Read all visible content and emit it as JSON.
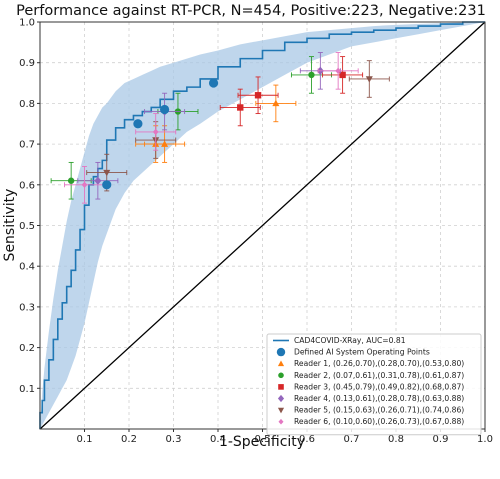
{
  "chart_data": {
    "type": "scatter",
    "title": "Performance against RT-PCR, N=454, Positive:223, Negative:231",
    "xlabel": "1-Specificity",
    "ylabel": "Sensitivity",
    "xlim": [
      0.0,
      1.0
    ],
    "ylim": [
      0.0,
      1.0
    ],
    "xticks": [
      "0.1",
      "0.2",
      "0.3",
      "0.4",
      "0.5",
      "0.6",
      "0.7",
      "0.8",
      "0.9",
      "1.0"
    ],
    "yticks": [
      "0.1",
      "0.2",
      "0.3",
      "0.4",
      "0.5",
      "0.6",
      "0.7",
      "0.8",
      "0.9",
      "1.0"
    ],
    "grid": true,
    "legend_position": "lower-right",
    "diagonal": [
      [
        0.0,
        0.0
      ],
      [
        1.0,
        1.0
      ]
    ],
    "roc": {
      "name": "CAD4COVID-XRay, AUC=0.81",
      "color": "#1f77b4",
      "band_color": "#a9c8e6",
      "x": [
        0.0,
        0.005,
        0.01,
        0.02,
        0.03,
        0.04,
        0.05,
        0.06,
        0.07,
        0.08,
        0.09,
        0.1,
        0.11,
        0.12,
        0.13,
        0.14,
        0.15,
        0.17,
        0.19,
        0.21,
        0.23,
        0.25,
        0.27,
        0.3,
        0.33,
        0.36,
        0.4,
        0.45,
        0.5,
        0.55,
        0.6,
        0.65,
        0.7,
        0.75,
        0.8,
        0.85,
        0.9,
        0.95,
        1.0
      ],
      "y": [
        0.0,
        0.04,
        0.07,
        0.12,
        0.17,
        0.22,
        0.27,
        0.31,
        0.35,
        0.39,
        0.44,
        0.49,
        0.55,
        0.6,
        0.62,
        0.64,
        0.66,
        0.71,
        0.74,
        0.76,
        0.77,
        0.78,
        0.79,
        0.81,
        0.83,
        0.84,
        0.86,
        0.89,
        0.91,
        0.93,
        0.95,
        0.96,
        0.97,
        0.975,
        0.98,
        0.985,
        0.99,
        0.995,
        1.0
      ],
      "upper": [
        0.0,
        0.09,
        0.15,
        0.24,
        0.32,
        0.39,
        0.45,
        0.51,
        0.56,
        0.6,
        0.64,
        0.68,
        0.72,
        0.75,
        0.77,
        0.79,
        0.8,
        0.83,
        0.85,
        0.86,
        0.87,
        0.88,
        0.89,
        0.9,
        0.91,
        0.92,
        0.93,
        0.945,
        0.955,
        0.965,
        0.975,
        0.98,
        0.985,
        0.99,
        0.993,
        0.995,
        0.997,
        0.999,
        1.0
      ],
      "lower": [
        0.0,
        0.01,
        0.02,
        0.04,
        0.06,
        0.08,
        0.1,
        0.12,
        0.15,
        0.18,
        0.22,
        0.26,
        0.31,
        0.36,
        0.41,
        0.45,
        0.48,
        0.54,
        0.58,
        0.61,
        0.63,
        0.65,
        0.67,
        0.7,
        0.73,
        0.75,
        0.78,
        0.81,
        0.84,
        0.87,
        0.9,
        0.92,
        0.94,
        0.95,
        0.96,
        0.97,
        0.98,
        0.99,
        1.0
      ]
    },
    "operating_points": {
      "name": "Defined AI System Operating Points",
      "color": "#1f77b4",
      "points": [
        [
          0.15,
          0.6
        ],
        [
          0.22,
          0.75
        ],
        [
          0.28,
          0.785
        ],
        [
          0.39,
          0.85
        ]
      ]
    },
    "readers": [
      {
        "name": "Reader 1, (0.26,0.70),(0.28,0.70),(0.53,0.80)",
        "marker": "triangle-up",
        "color": "#ff7f0e",
        "points": [
          [
            0.26,
            0.7
          ],
          [
            0.28,
            0.7
          ],
          [
            0.53,
            0.8
          ]
        ]
      },
      {
        "name": "Reader 2, (0.07,0.61),(0.31,0.78),(0.61,0.87)",
        "marker": "circle",
        "color": "#2ca02c",
        "points": [
          [
            0.07,
            0.61
          ],
          [
            0.31,
            0.78
          ],
          [
            0.61,
            0.87
          ]
        ]
      },
      {
        "name": "Reader 3, (0.45,0.79),(0.49,0.82),(0.68,0.87)",
        "marker": "square",
        "color": "#d62728",
        "points": [
          [
            0.45,
            0.79
          ],
          [
            0.49,
            0.82
          ],
          [
            0.68,
            0.87
          ]
        ]
      },
      {
        "name": "Reader 4, (0.13,0.61),(0.28,0.78),(0.63,0.88)",
        "marker": "diamond",
        "color": "#9467bd",
        "points": [
          [
            0.13,
            0.61
          ],
          [
            0.28,
            0.78
          ],
          [
            0.63,
            0.88
          ]
        ]
      },
      {
        "name": "Reader 5, (0.15,0.63),(0.26,0.71),(0.74,0.86)",
        "marker": "triangle-down",
        "color": "#8c564b",
        "points": [
          [
            0.15,
            0.63
          ],
          [
            0.26,
            0.71
          ],
          [
            0.74,
            0.86
          ]
        ]
      },
      {
        "name": "Reader 6, (0.10,0.60),(0.26,0.73),(0.67,0.88)",
        "marker": "plus-diamond",
        "color": "#e377c2",
        "points": [
          [
            0.1,
            0.6
          ],
          [
            0.26,
            0.73
          ],
          [
            0.67,
            0.88
          ]
        ]
      }
    ],
    "error_bars": {
      "x_half_width": 0.045,
      "y_half_width": 0.045
    }
  }
}
